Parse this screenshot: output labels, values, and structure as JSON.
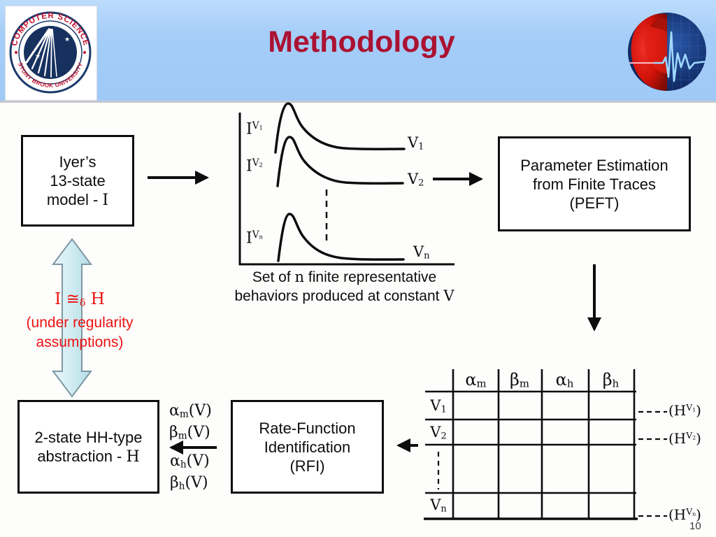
{
  "slide": {
    "title": "Methodology",
    "page_number": "10"
  },
  "colors": {
    "banner_blue": "#A5CDF8",
    "title_red": "#AB1232",
    "note_red": "#EE1111",
    "diagram_ink": "#0d0d0d",
    "double_arrow_fill": "#cdeaf0"
  },
  "logos": {
    "left": {
      "name": "stony-brook-cs-seal",
      "text_top": "COMPUTER SCIENCE",
      "text_bottom": "STONY BROOK UNIVERSITY",
      "star_glyph": "★"
    },
    "right": {
      "name": "heart-ecg-logo"
    }
  },
  "flow": {
    "iyer_box": {
      "line1": "Iyer’s",
      "line2": "13-state",
      "line3_html": "model - <span class='m'>I</span>"
    },
    "peft_box": {
      "line1": "Parameter Estimation",
      "line2": "from Finite Traces",
      "line3": "(PEFT)"
    },
    "rfi_box": {
      "line1": "Rate-Function",
      "line2": "Identification",
      "line3": "(RFI)"
    },
    "hh_box": {
      "line1": "2-state HH-type",
      "line2_html": "abstraction - <span class='m'>H</span>"
    },
    "equiv_note": {
      "line1_html": "I ≅<sub>δ</sub> H",
      "line2": "(under regularity",
      "line3": "assumptions)"
    }
  },
  "traces": {
    "caption_line1_html": "Set of <span class='m'>n</span> finite representative",
    "caption_line2_html": "behaviors produced at constant <span class='m'>V</span>",
    "items": [
      {
        "current_html": "I<sup>V<sub>1</sub></sup>",
        "voltage_html": "V<sub>1</sub>"
      },
      {
        "current_html": "I<sup>V<sub>2</sub></sup>",
        "voltage_html": "V<sub>2</sub>"
      },
      {
        "current_html": "I<sup>V<sub>n</sub></sup>",
        "voltage_html": "V<sub>n</sub>"
      }
    ]
  },
  "table": {
    "col_headers_html": [
      "α<sub>m</sub>",
      "β<sub>m</sub>",
      "α<sub>h</sub>",
      "β<sub>h</sub>"
    ],
    "row_headers_html": [
      "V<sub>1</sub>",
      "V<sub>2</sub>",
      "V<sub>n</sub>"
    ],
    "outputs_html": [
      "(H<sup>V<sub>1</sub></sup>)",
      "(H<sup>V<sub>2</sub></sup>)",
      "(H<sup>V<sub>n</sub></sup>)"
    ]
  },
  "rate_functions_html": [
    "α<sub>m</sub>(V)",
    "β<sub>m</sub>(V)",
    "α<sub>h</sub>(V)",
    "β<sub>h</sub>(V)"
  ]
}
